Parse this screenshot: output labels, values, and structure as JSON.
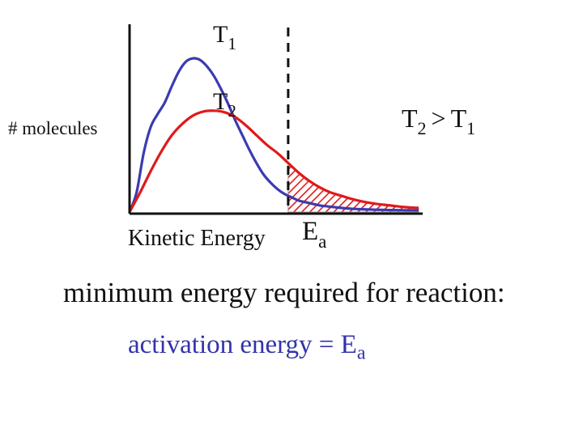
{
  "chart_data": {
    "type": "line",
    "title": "",
    "xlabel": "Kinetic Energy",
    "ylabel": "# molecules",
    "activation_marker": {
      "base": "E",
      "sub": "a",
      "x": 4.5
    },
    "relation": {
      "lhs_base": "T",
      "lhs_sub": "2",
      "op": ">",
      "rhs_base": "T",
      "rhs_sub": "1"
    },
    "xlim": [
      0,
      8.5
    ],
    "ylim": [
      0,
      1.0
    ],
    "series": [
      {
        "name": "T1",
        "label_base": "T",
        "label_sub": "1",
        "color": "#3b3bb0",
        "x": [
          0,
          0.2,
          0.4,
          0.6,
          0.8,
          1.0,
          1.2,
          1.4,
          1.6,
          1.8,
          2.0,
          2.2,
          2.4,
          2.6,
          2.8,
          3.0,
          3.2,
          3.4,
          3.6,
          3.8,
          4.0,
          4.2,
          4.4,
          4.6,
          4.8,
          5.0,
          5.2,
          5.4,
          5.6,
          5.8,
          6.0,
          6.3,
          6.6,
          7.0,
          7.4,
          7.8,
          8.2
        ],
        "y": [
          0,
          0.12,
          0.36,
          0.52,
          0.6,
          0.67,
          0.77,
          0.86,
          0.92,
          0.94,
          0.93,
          0.89,
          0.83,
          0.75,
          0.66,
          0.56,
          0.47,
          0.38,
          0.3,
          0.23,
          0.18,
          0.14,
          0.11,
          0.09,
          0.07,
          0.06,
          0.05,
          0.04,
          0.035,
          0.03,
          0.025,
          0.02,
          0.017,
          0.014,
          0.012,
          0.011,
          0.01
        ]
      },
      {
        "name": "T2",
        "label_base": "T",
        "label_sub": "2",
        "color": "#e01a1a",
        "x": [
          0,
          0.3,
          0.6,
          0.9,
          1.2,
          1.5,
          1.8,
          2.1,
          2.4,
          2.7,
          3.0,
          3.3,
          3.6,
          3.9,
          4.2,
          4.5,
          4.8,
          5.1,
          5.4,
          5.7,
          6.0,
          6.3,
          6.6,
          7.0,
          7.4,
          7.8,
          8.2
        ],
        "y": [
          0,
          0.12,
          0.25,
          0.37,
          0.47,
          0.54,
          0.59,
          0.615,
          0.62,
          0.61,
          0.58,
          0.53,
          0.47,
          0.41,
          0.36,
          0.3,
          0.24,
          0.19,
          0.15,
          0.12,
          0.1,
          0.08,
          0.065,
          0.05,
          0.04,
          0.03,
          0.025
        ]
      }
    ],
    "shaded_region": {
      "from_x": 4.5,
      "to_x": 8.2,
      "pattern": "red diagonal hatch",
      "color": "#e01a1a"
    }
  },
  "caption": "minimum energy required for  reaction:",
  "activation_text": {
    "prefix": "activation energy = E",
    "sub": "a"
  }
}
